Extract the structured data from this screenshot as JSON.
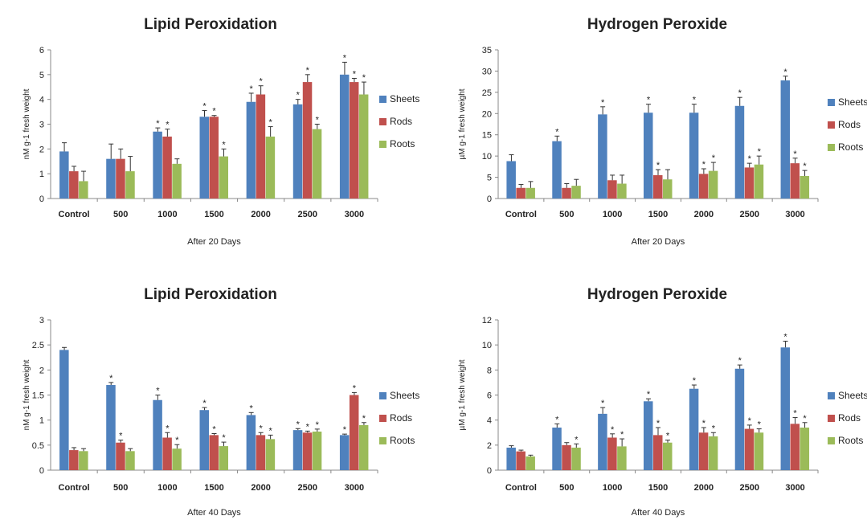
{
  "colors": {
    "sheets": "#4F81BD",
    "rods": "#C0504D",
    "roots": "#9BBB59",
    "axis": "#888888",
    "text": "#222222",
    "error": "#333333"
  },
  "chart_data": [
    {
      "type": "bar",
      "title": "Lipid Peroxidation",
      "xlabel": "After 20 Days",
      "ylabel": "nM g-1 fresh weight",
      "ylim": [
        0,
        6
      ],
      "yticks": [
        "0",
        "1",
        "2",
        "3",
        "4",
        "5",
        "6"
      ],
      "ytick_values": [
        0,
        1,
        2,
        3,
        4,
        5,
        6
      ],
      "categories": [
        "Control",
        "500",
        "1000",
        "1500",
        "2000",
        "2500",
        "3000"
      ],
      "legend_position": "right",
      "series": [
        {
          "name": "Sheets",
          "values": [
            1.9,
            1.6,
            2.7,
            3.3,
            3.9,
            3.8,
            5.0
          ],
          "errors": [
            0.35,
            0.6,
            0.15,
            0.25,
            0.35,
            0.2,
            0.5
          ],
          "sig": [
            false,
            false,
            true,
            true,
            true,
            true,
            true
          ]
        },
        {
          "name": "Rods",
          "values": [
            1.1,
            1.6,
            2.5,
            3.3,
            4.2,
            4.7,
            4.7
          ],
          "errors": [
            0.2,
            0.4,
            0.3,
            0.05,
            0.35,
            0.3,
            0.15
          ],
          "sig": [
            false,
            false,
            true,
            true,
            true,
            true,
            true
          ]
        },
        {
          "name": "Roots",
          "values": [
            0.7,
            1.1,
            1.4,
            1.7,
            2.5,
            2.8,
            4.2
          ],
          "errors": [
            0.4,
            0.6,
            0.2,
            0.3,
            0.4,
            0.2,
            0.5
          ],
          "sig": [
            false,
            false,
            false,
            true,
            true,
            true,
            true
          ]
        }
      ]
    },
    {
      "type": "bar",
      "title": "Hydrogen Peroxide",
      "xlabel": "After 20 Days",
      "ylabel": "µM g-1 fresh weight",
      "ylim": [
        0,
        35
      ],
      "yticks": [
        "0",
        "5",
        "10",
        "15",
        "20",
        "25",
        "30",
        "35"
      ],
      "ytick_values": [
        0,
        5,
        10,
        15,
        20,
        25,
        30,
        35
      ],
      "categories": [
        "Control",
        "500",
        "1000",
        "1500",
        "2000",
        "2500",
        "3000"
      ],
      "legend_position": "right",
      "series": [
        {
          "name": "Sheets",
          "values": [
            8.8,
            13.5,
            19.8,
            20.2,
            20.2,
            21.8,
            27.8
          ],
          "errors": [
            1.5,
            1.2,
            1.8,
            2.0,
            2.0,
            2.0,
            1.0
          ],
          "sig": [
            false,
            true,
            true,
            true,
            true,
            true,
            true
          ]
        },
        {
          "name": "Rods",
          "values": [
            2.5,
            2.5,
            4.3,
            5.5,
            5.8,
            7.3,
            8.3
          ],
          "errors": [
            0.8,
            1.0,
            1.2,
            1.3,
            1.2,
            1.0,
            1.2
          ],
          "sig": [
            false,
            false,
            false,
            true,
            true,
            true,
            true
          ]
        },
        {
          "name": "Roots",
          "values": [
            2.5,
            3.0,
            3.5,
            4.5,
            6.5,
            8.0,
            5.3
          ],
          "errors": [
            1.5,
            1.5,
            2.0,
            2.3,
            2.0,
            2.0,
            1.3
          ],
          "sig": [
            false,
            false,
            false,
            false,
            true,
            true,
            true
          ]
        }
      ]
    },
    {
      "type": "bar",
      "title": "Lipid Peroxidation",
      "xlabel": "After 40 Days",
      "ylabel": "nM g-1 fresh weight",
      "ylim": [
        0,
        3
      ],
      "yticks": [
        "0",
        "0.5",
        "1",
        "1.5",
        "2",
        "2.5",
        "3"
      ],
      "ytick_values": [
        0,
        0.5,
        1,
        1.5,
        2,
        2.5,
        3
      ],
      "categories": [
        "Control",
        "500",
        "1000",
        "1500",
        "2000",
        "2500",
        "3000"
      ],
      "legend_position": "right",
      "series": [
        {
          "name": "Sheets",
          "values": [
            2.4,
            1.7,
            1.4,
            1.2,
            1.1,
            0.8,
            0.7
          ],
          "errors": [
            0.05,
            0.05,
            0.1,
            0.05,
            0.05,
            0.03,
            0.02
          ],
          "sig": [
            false,
            true,
            true,
            true,
            true,
            true,
            true
          ]
        },
        {
          "name": "Rods",
          "values": [
            0.4,
            0.55,
            0.65,
            0.7,
            0.7,
            0.75,
            1.5
          ],
          "errors": [
            0.05,
            0.05,
            0.1,
            0.03,
            0.05,
            0.03,
            0.05
          ],
          "sig": [
            false,
            true,
            true,
            true,
            true,
            true,
            true
          ]
        },
        {
          "name": "Roots",
          "values": [
            0.38,
            0.38,
            0.43,
            0.48,
            0.62,
            0.77,
            0.9
          ],
          "errors": [
            0.05,
            0.05,
            0.08,
            0.08,
            0.08,
            0.05,
            0.05
          ],
          "sig": [
            false,
            false,
            true,
            true,
            true,
            true,
            true
          ]
        }
      ]
    },
    {
      "type": "bar",
      "title": "Hydrogen Peroxide",
      "xlabel": "After 40 Days",
      "ylabel": "µM g-1 fresh weight",
      "ylim": [
        0,
        12
      ],
      "yticks": [
        "0",
        "2",
        "4",
        "6",
        "8",
        "10",
        "12"
      ],
      "ytick_values": [
        0,
        2,
        4,
        6,
        8,
        10,
        12
      ],
      "categories": [
        "Control",
        "500",
        "1000",
        "1500",
        "2000",
        "2500",
        "3000"
      ],
      "legend_position": "right",
      "series": [
        {
          "name": "Sheets",
          "values": [
            1.8,
            3.4,
            4.5,
            5.5,
            6.5,
            8.1,
            9.8
          ],
          "errors": [
            0.15,
            0.3,
            0.5,
            0.2,
            0.3,
            0.3,
            0.5
          ],
          "sig": [
            false,
            true,
            true,
            true,
            true,
            true,
            true
          ]
        },
        {
          "name": "Rods",
          "values": [
            1.5,
            2.0,
            2.6,
            2.8,
            3.0,
            3.3,
            3.7
          ],
          "errors": [
            0.1,
            0.2,
            0.3,
            0.6,
            0.4,
            0.3,
            0.5
          ],
          "sig": [
            false,
            false,
            true,
            true,
            true,
            true,
            true
          ]
        },
        {
          "name": "Roots",
          "values": [
            1.1,
            1.8,
            1.9,
            2.2,
            2.7,
            3.0,
            3.4
          ],
          "errors": [
            0.1,
            0.3,
            0.6,
            0.2,
            0.3,
            0.3,
            0.4
          ],
          "sig": [
            false,
            true,
            true,
            true,
            true,
            true,
            true
          ]
        }
      ]
    }
  ]
}
